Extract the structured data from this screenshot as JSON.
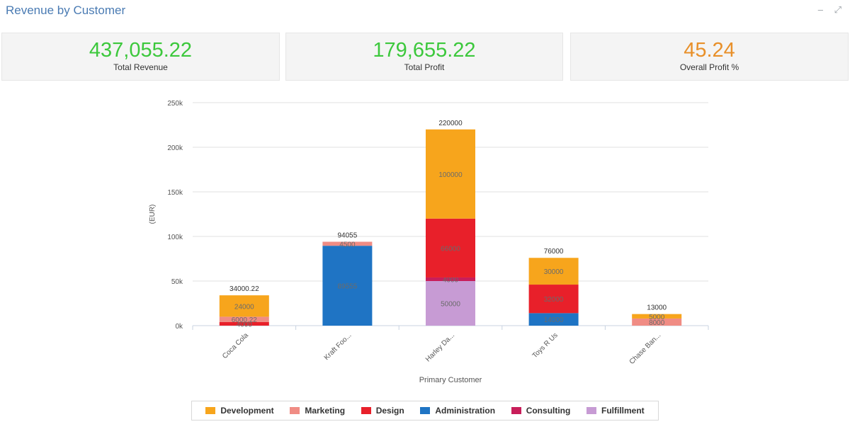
{
  "header": {
    "title": "Revenue by Customer",
    "minimize": "–",
    "expand": "⤢"
  },
  "kpis": [
    {
      "value": "437,055.22",
      "label": "Total Revenue",
      "color": "#3cc83c"
    },
    {
      "value": "179,655.22",
      "label": "Total Profit",
      "color": "#3cc83c"
    },
    {
      "value": "45.24",
      "label": "Overall Profit %",
      "color": "#e8902a"
    }
  ],
  "chart_data": {
    "type": "bar",
    "stacked": true,
    "xlabel": "Primary Customer",
    "ylabel": "(EUR)",
    "ylim": [
      0,
      250000
    ],
    "yticks": [
      0,
      50000,
      100000,
      150000,
      200000,
      250000
    ],
    "ytick_labels": [
      "0k",
      "50k",
      "100k",
      "150k",
      "200k",
      "250k"
    ],
    "grid": true,
    "legend_position": "bottom",
    "categories": [
      "Coca Cola",
      "Kraft Foo...",
      "Harley Da...",
      "Toys R Us",
      "Chase Ban..."
    ],
    "totals": [
      "34000.22",
      "94055",
      "220000",
      "76000",
      "13000"
    ],
    "series": [
      {
        "name": "Administration",
        "color": "#1f74c4",
        "values": [
          0,
          89555,
          0,
          14000,
          0
        ]
      },
      {
        "name": "Fulfillment",
        "color": "#c79bd4",
        "values": [
          0,
          0,
          50000,
          0,
          0
        ]
      },
      {
        "name": "Consulting",
        "color": "#c81e5a",
        "values": [
          0,
          0,
          4000,
          0,
          0
        ]
      },
      {
        "name": "Design",
        "color": "#e8202a",
        "values": [
          4000,
          0,
          66000,
          32000,
          0
        ]
      },
      {
        "name": "Marketing",
        "color": "#f08c84",
        "values": [
          6000.22,
          4500,
          0,
          0,
          8000
        ]
      },
      {
        "name": "Development",
        "color": "#f7a51c",
        "values": [
          24000,
          0,
          100000,
          30000,
          5000
        ]
      }
    ],
    "data_labels": [
      [
        "",
        "89555",
        "",
        "14000",
        ""
      ],
      [
        "",
        "",
        "50000",
        "",
        ""
      ],
      [
        "",
        "",
        "4000",
        "",
        ""
      ],
      [
        "4000",
        "",
        "66000",
        "32000",
        ""
      ],
      [
        "6000.22",
        "4500",
        "",
        "",
        "8000"
      ],
      [
        "24000",
        "",
        "100000",
        "30000",
        "5000"
      ]
    ]
  },
  "legend": [
    {
      "label": "Development",
      "color": "#f7a51c"
    },
    {
      "label": "Marketing",
      "color": "#f08c84"
    },
    {
      "label": "Design",
      "color": "#e8202a"
    },
    {
      "label": "Administration",
      "color": "#1f74c4"
    },
    {
      "label": "Consulting",
      "color": "#c81e5a"
    },
    {
      "label": "Fulfillment",
      "color": "#c79bd4"
    }
  ]
}
